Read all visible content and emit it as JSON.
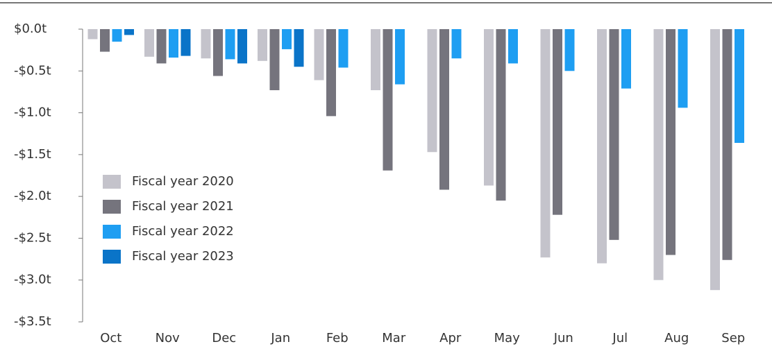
{
  "chart_data": {
    "type": "bar",
    "categories": [
      "Oct",
      "Nov",
      "Dec",
      "Jan",
      "Feb",
      "Mar",
      "Apr",
      "May",
      "Jun",
      "Jul",
      "Aug",
      "Sep"
    ],
    "series": [
      {
        "name": "Fiscal year 2020",
        "color": "#c4c3cb",
        "values": [
          -0.12,
          -0.33,
          -0.35,
          -0.38,
          -0.61,
          -0.73,
          -1.47,
          -1.87,
          -2.73,
          -2.8,
          -3.0,
          -3.12
        ]
      },
      {
        "name": "Fiscal year 2021",
        "color": "#75747d",
        "values": [
          -0.27,
          -0.41,
          -0.56,
          -0.73,
          -1.04,
          -1.69,
          -1.92,
          -2.05,
          -2.22,
          -2.52,
          -2.7,
          -2.76
        ]
      },
      {
        "name": "Fiscal year 2022",
        "color": "#1e9ef2",
        "values": [
          -0.15,
          -0.34,
          -0.36,
          -0.24,
          -0.46,
          -0.66,
          -0.35,
          -0.41,
          -0.5,
          -0.71,
          -0.94,
          -1.36
        ]
      },
      {
        "name": "Fiscal year 2023",
        "color": "#0a74c8",
        "values": [
          -0.07,
          -0.32,
          -0.41,
          -0.45,
          null,
          null,
          null,
          null,
          null,
          null,
          null,
          null
        ]
      }
    ],
    "ylim": [
      -3.5,
      0
    ],
    "yticks": [
      {
        "value": 0,
        "label": "$0.0t"
      },
      {
        "value": -0.5,
        "label": "-$0.5t"
      },
      {
        "value": -1,
        "label": "-$1.0t"
      },
      {
        "value": -1.5,
        "label": "-$1.5t"
      },
      {
        "value": -2,
        "label": "-$2.0t"
      },
      {
        "value": -2.5,
        "label": "-$2.5t"
      },
      {
        "value": -3,
        "label": "-$3.0t"
      },
      {
        "value": -3.5,
        "label": "-$3.5t"
      }
    ],
    "legend": "left"
  }
}
